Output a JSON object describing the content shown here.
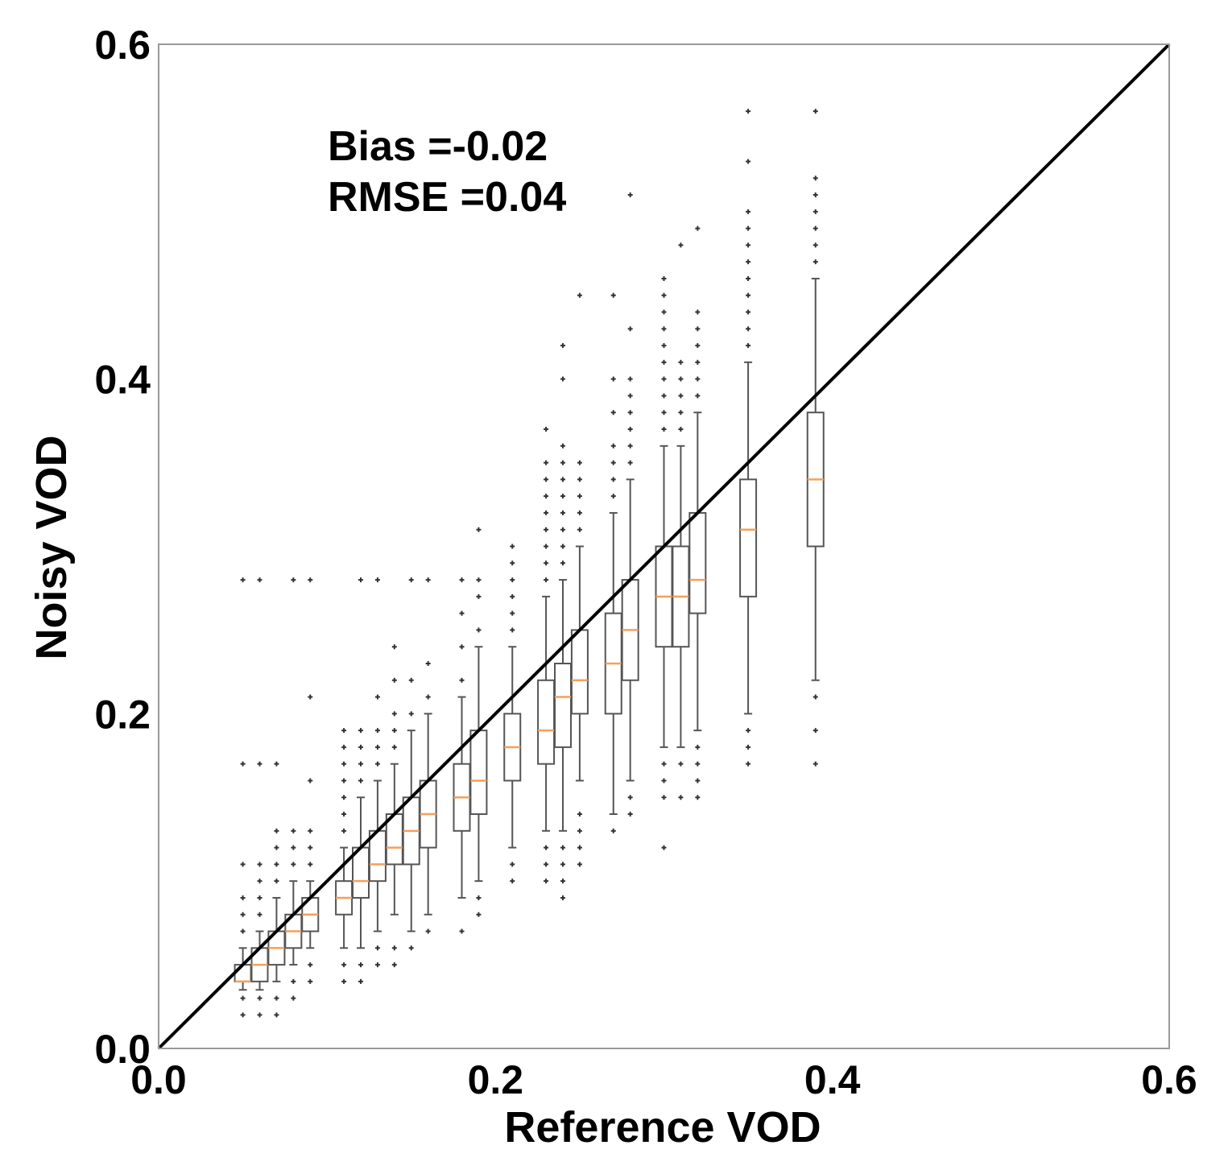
{
  "chart_data": {
    "type": "box",
    "title": "",
    "xlabel": "Reference VOD",
    "ylabel": "Noisy VOD",
    "xlim": [
      0.0,
      0.6
    ],
    "ylim": [
      0.0,
      0.6
    ],
    "xticks": [
      "0.0",
      "0.2",
      "0.4",
      "0.6"
    ],
    "yticks": [
      "0.0",
      "0.2",
      "0.4",
      "0.6"
    ],
    "grid": false,
    "annotations": [
      "Bias =-0.02",
      "RMSE =0.04"
    ],
    "reference_line": {
      "name": "1:1 line",
      "from": [
        0.0,
        0.0
      ],
      "to": [
        0.6,
        0.6
      ],
      "color": "#000000"
    },
    "colors": {
      "box": "#555555",
      "median": "#f5a05a",
      "outlier": "#333333",
      "frame": "#999999"
    },
    "boxes": [
      {
        "x": 0.05,
        "wlo": 0.035,
        "q1": 0.04,
        "med": 0.04,
        "q3": 0.05,
        "whi": 0.06,
        "out": [
          0.02,
          0.03,
          0.07,
          0.08,
          0.09,
          0.11,
          0.17,
          0.28
        ]
      },
      {
        "x": 0.06,
        "wlo": 0.035,
        "q1": 0.04,
        "med": 0.05,
        "q3": 0.06,
        "whi": 0.07,
        "out": [
          0.02,
          0.03,
          0.08,
          0.09,
          0.1,
          0.11,
          0.17,
          0.28
        ]
      },
      {
        "x": 0.07,
        "wlo": 0.04,
        "q1": 0.05,
        "med": 0.06,
        "q3": 0.07,
        "whi": 0.09,
        "out": [
          0.02,
          0.03,
          0.1,
          0.11,
          0.12,
          0.13,
          0.17
        ]
      },
      {
        "x": 0.08,
        "wlo": 0.05,
        "q1": 0.06,
        "med": 0.07,
        "q3": 0.08,
        "whi": 0.1,
        "out": [
          0.03,
          0.04,
          0.11,
          0.12,
          0.13,
          0.28
        ]
      },
      {
        "x": 0.09,
        "wlo": 0.06,
        "q1": 0.07,
        "med": 0.08,
        "q3": 0.09,
        "whi": 0.1,
        "out": [
          0.04,
          0.05,
          0.11,
          0.12,
          0.13,
          0.16,
          0.21,
          0.28
        ]
      },
      {
        "x": 0.11,
        "wlo": 0.06,
        "q1": 0.08,
        "med": 0.09,
        "q3": 0.1,
        "whi": 0.12,
        "out": [
          0.04,
          0.05,
          0.13,
          0.14,
          0.15,
          0.16,
          0.17,
          0.18,
          0.19
        ]
      },
      {
        "x": 0.12,
        "wlo": 0.06,
        "q1": 0.09,
        "med": 0.1,
        "q3": 0.12,
        "whi": 0.15,
        "out": [
          0.04,
          0.05,
          0.16,
          0.17,
          0.18,
          0.19,
          0.28
        ]
      },
      {
        "x": 0.13,
        "wlo": 0.07,
        "q1": 0.1,
        "med": 0.11,
        "q3": 0.13,
        "whi": 0.16,
        "out": [
          0.05,
          0.06,
          0.17,
          0.18,
          0.19,
          0.21,
          0.28
        ]
      },
      {
        "x": 0.14,
        "wlo": 0.08,
        "q1": 0.11,
        "med": 0.12,
        "q3": 0.14,
        "whi": 0.17,
        "out": [
          0.05,
          0.06,
          0.18,
          0.19,
          0.2,
          0.22,
          0.24
        ]
      },
      {
        "x": 0.15,
        "wlo": 0.07,
        "q1": 0.11,
        "med": 0.13,
        "q3": 0.15,
        "whi": 0.19,
        "out": [
          0.06,
          0.2,
          0.22,
          0.28
        ]
      },
      {
        "x": 0.16,
        "wlo": 0.08,
        "q1": 0.12,
        "med": 0.14,
        "q3": 0.16,
        "whi": 0.2,
        "out": [
          0.07,
          0.21,
          0.23,
          0.28
        ]
      },
      {
        "x": 0.18,
        "wlo": 0.09,
        "q1": 0.13,
        "med": 0.15,
        "q3": 0.17,
        "whi": 0.21,
        "out": [
          0.07,
          0.22,
          0.24,
          0.26,
          0.28
        ]
      },
      {
        "x": 0.19,
        "wlo": 0.1,
        "q1": 0.14,
        "med": 0.16,
        "q3": 0.19,
        "whi": 0.24,
        "out": [
          0.08,
          0.09,
          0.25,
          0.27,
          0.28,
          0.31
        ]
      },
      {
        "x": 0.21,
        "wlo": 0.12,
        "q1": 0.16,
        "med": 0.18,
        "q3": 0.2,
        "whi": 0.24,
        "out": [
          0.1,
          0.11,
          0.25,
          0.26,
          0.27,
          0.28,
          0.29,
          0.3
        ]
      },
      {
        "x": 0.23,
        "wlo": 0.13,
        "q1": 0.17,
        "med": 0.19,
        "q3": 0.22,
        "whi": 0.27,
        "out": [
          0.1,
          0.11,
          0.12,
          0.28,
          0.29,
          0.3,
          0.31,
          0.32,
          0.33,
          0.34,
          0.35,
          0.37
        ]
      },
      {
        "x": 0.24,
        "wlo": 0.13,
        "q1": 0.18,
        "med": 0.21,
        "q3": 0.23,
        "whi": 0.28,
        "out": [
          0.09,
          0.1,
          0.11,
          0.12,
          0.29,
          0.3,
          0.31,
          0.32,
          0.33,
          0.34,
          0.35,
          0.36,
          0.4,
          0.42
        ]
      },
      {
        "x": 0.25,
        "wlo": 0.16,
        "q1": 0.2,
        "med": 0.22,
        "q3": 0.25,
        "whi": 0.3,
        "out": [
          0.11,
          0.12,
          0.13,
          0.14,
          0.31,
          0.32,
          0.33,
          0.34,
          0.35,
          0.45
        ]
      },
      {
        "x": 0.27,
        "wlo": 0.14,
        "q1": 0.2,
        "med": 0.23,
        "q3": 0.26,
        "whi": 0.32,
        "out": [
          0.13,
          0.33,
          0.34,
          0.35,
          0.36,
          0.38,
          0.4,
          0.45
        ]
      },
      {
        "x": 0.28,
        "wlo": 0.16,
        "q1": 0.22,
        "med": 0.25,
        "q3": 0.28,
        "whi": 0.34,
        "out": [
          0.14,
          0.15,
          0.35,
          0.36,
          0.37,
          0.38,
          0.39,
          0.4,
          0.43,
          0.51
        ]
      },
      {
        "x": 0.3,
        "wlo": 0.18,
        "q1": 0.24,
        "med": 0.27,
        "q3": 0.3,
        "whi": 0.36,
        "out": [
          0.12,
          0.15,
          0.16,
          0.17,
          0.37,
          0.38,
          0.39,
          0.4,
          0.41,
          0.42,
          0.43,
          0.44,
          0.45,
          0.46
        ]
      },
      {
        "x": 0.31,
        "wlo": 0.18,
        "q1": 0.24,
        "med": 0.27,
        "q3": 0.3,
        "whi": 0.36,
        "out": [
          0.15,
          0.17,
          0.37,
          0.38,
          0.39,
          0.4,
          0.41,
          0.48
        ]
      },
      {
        "x": 0.32,
        "wlo": 0.19,
        "q1": 0.26,
        "med": 0.28,
        "q3": 0.32,
        "whi": 0.38,
        "out": [
          0.15,
          0.16,
          0.17,
          0.18,
          0.39,
          0.4,
          0.41,
          0.42,
          0.43,
          0.44,
          0.49
        ]
      },
      {
        "x": 0.35,
        "wlo": 0.2,
        "q1": 0.27,
        "med": 0.31,
        "q3": 0.34,
        "whi": 0.41,
        "out": [
          0.17,
          0.18,
          0.19,
          0.42,
          0.43,
          0.44,
          0.45,
          0.46,
          0.47,
          0.48,
          0.49,
          0.5,
          0.53,
          0.56
        ]
      },
      {
        "x": 0.39,
        "wlo": 0.22,
        "q1": 0.3,
        "med": 0.34,
        "q3": 0.38,
        "whi": 0.46,
        "out": [
          0.17,
          0.19,
          0.21,
          0.47,
          0.48,
          0.49,
          0.5,
          0.51,
          0.52,
          0.56
        ]
      }
    ]
  }
}
